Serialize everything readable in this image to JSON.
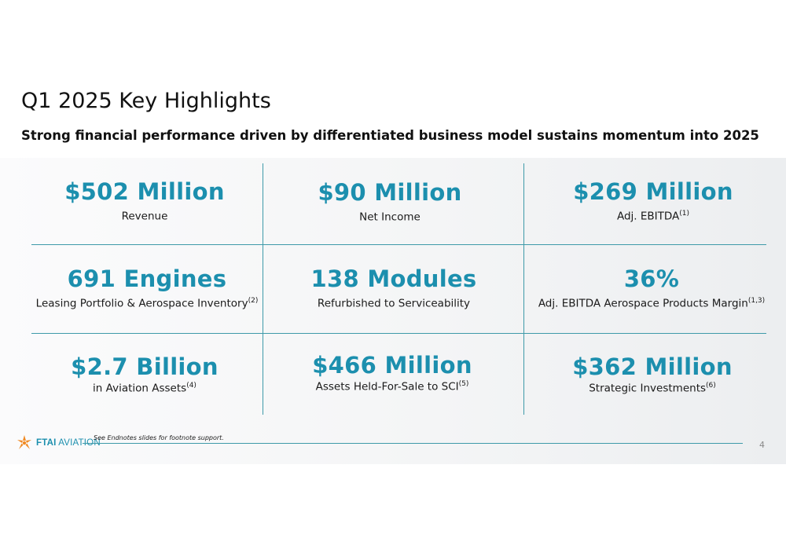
{
  "title": "Q1 2025 Key Highlights",
  "subtitle": "Strong financial performance driven by differentiated business model sustains momentum into 2025",
  "metrics": [
    {
      "value": "$502 Million",
      "label": "Revenue",
      "sup": ""
    },
    {
      "value": "$90 Million",
      "label": "Net Income",
      "sup": ""
    },
    {
      "value": "$269 Million",
      "label": "Adj. EBITDA",
      "sup": "(1)"
    },
    {
      "value": "691 Engines",
      "label": "Leasing Portfolio & Aerospace Inventory",
      "sup": "(2)"
    },
    {
      "value": "138 Modules",
      "label": "Refurbished to Serviceability",
      "sup": ""
    },
    {
      "value": "36%",
      "label": "Adj. EBITDA Aerospace Products Margin",
      "sup": "(1,3)"
    },
    {
      "value": "$2.7 Billion",
      "label": "in Aviation Assets",
      "sup": "(4)"
    },
    {
      "value": "$466 Million",
      "label": "Assets Held-For-Sale to SCI",
      "sup": "(5)"
    },
    {
      "value": "$362 Million",
      "label": "Strategic Investments",
      "sup": "(6)"
    }
  ],
  "footer": {
    "logo_bold": "FTAI",
    "logo_rest": " AVIATION",
    "note": "See Endnotes slides for footnote support.",
    "page": "4"
  },
  "colors": {
    "accent": "#1c8fae",
    "rule": "#3e9aa9",
    "logo_orange": "#f08a24"
  }
}
